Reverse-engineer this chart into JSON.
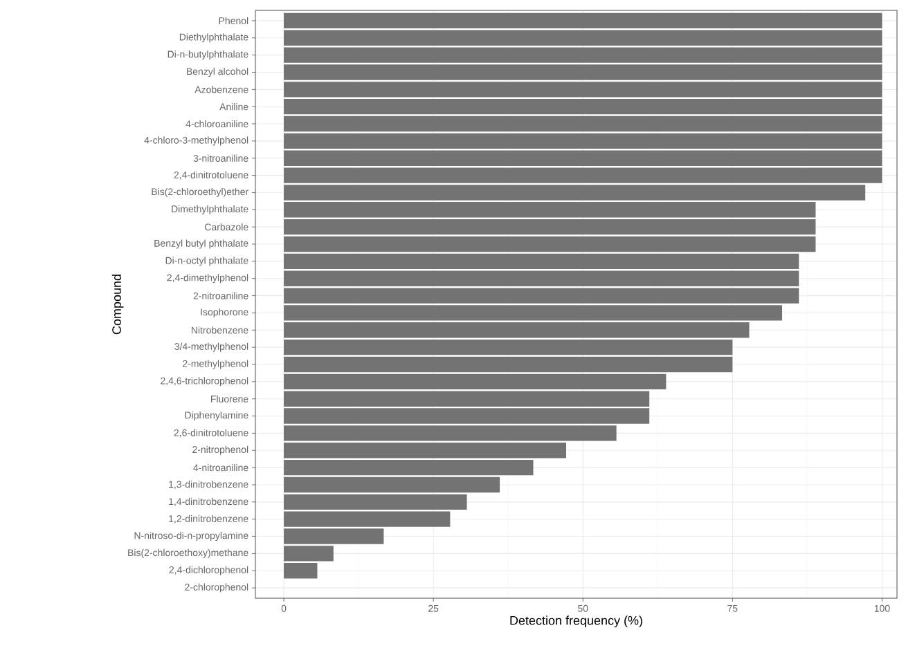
{
  "chart_data": {
    "type": "bar",
    "orientation": "horizontal",
    "xlabel": "Detection frequency (%)",
    "ylabel": "Compound",
    "categories": [
      "Phenol",
      "Diethylphthalate",
      "Di-n-butylphthalate",
      "Benzyl alcohol",
      "Azobenzene",
      "Aniline",
      "4-chloroaniline",
      "4-chloro-3-methylphenol",
      "3-nitroaniline",
      "2,4-dinitrotoluene",
      "Bis(2-chloroethyl)ether",
      "Dimethylphthalate",
      "Carbazole",
      "Benzyl butyl phthalate",
      "Di-n-octyl phthalate",
      "2,4-dimethylphenol",
      "2-nitroaniline",
      "Isophorone",
      "Nitrobenzene",
      "3/4-methylphenol",
      "2-methylphenol",
      "2,4,6-trichlorophenol",
      "Fluorene",
      "Diphenylamine",
      "2,6-dinitrotoluene",
      "2-nitrophenol",
      "4-nitroaniline",
      "1,3-dinitrobenzene",
      "1,4-dinitrobenzene",
      "1,2-dinitrobenzene",
      "N-nitroso-di-n-propylamine",
      "Bis(2-chloroethoxy)methane",
      "2,4-dichlorophenol",
      "2-chlorophenol"
    ],
    "values": [
      100,
      100,
      100,
      100,
      100,
      100,
      100,
      100,
      100,
      100,
      97.2,
      88.9,
      88.9,
      88.9,
      86.1,
      86.1,
      86.1,
      83.3,
      77.8,
      75,
      75,
      63.9,
      61.1,
      61.1,
      55.6,
      47.2,
      41.7,
      36.1,
      30.6,
      27.8,
      16.7,
      8.3,
      5.6,
      0
    ],
    "color": "#737373",
    "xlim": [
      -4.75,
      102.5
    ],
    "xticks": [
      0,
      25,
      50,
      75,
      100
    ],
    "grid": true
  }
}
